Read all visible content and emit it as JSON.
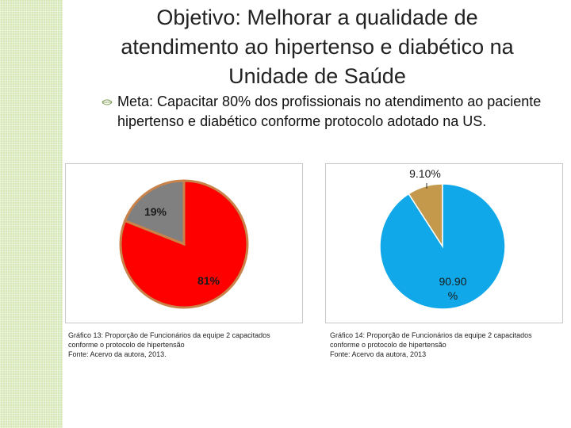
{
  "slide": {
    "title_label": "Objetivo:",
    "title_text": "Melhorar a qualidade de atendimento ao hipertenso e diabético na Unidade de Saúde",
    "bullet_icon": "leaf-bullet-icon",
    "meta": "Meta: Capacitar 80% dos profissionais no atendimento ao paciente hipertenso e diabético conforme protocolo adotado na US."
  },
  "chart_data": [
    {
      "type": "pie",
      "title": "",
      "slices": [
        {
          "label": "19%",
          "value": 19,
          "color": "#808080"
        },
        {
          "label": "81%",
          "value": 81,
          "color": "#ff0000"
        }
      ],
      "outline_color": "#c8824a",
      "caption": [
        "Gráfico 13: Proporção de Funcionários da equipe 2 capacitados",
        "conforme o protocolo de hipertensão",
        "Fonte: Acervo da autora, 2013."
      ]
    },
    {
      "type": "pie",
      "title": "",
      "slices": [
        {
          "label": "9.10%",
          "value": 9.1,
          "color": "#c4994c"
        },
        {
          "label": "90.90 %",
          "value": 90.9,
          "color": "#10a8e8"
        }
      ],
      "outline_color": "#ffffff",
      "caption": [
        "Gráfico 14: Proporção de Funcionários da equipe 2 capacitados",
        "conforme o protocolo de hipertensão",
        "Fonte: Acervo da autora, 2013"
      ]
    }
  ]
}
